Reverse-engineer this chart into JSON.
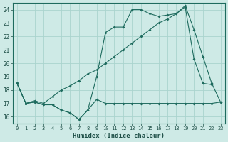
{
  "xlabel": "Humidex (Indice chaleur)",
  "bg_color": "#ceeae6",
  "line_color": "#1e6b5e",
  "grid_color": "#aad4ce",
  "xlim": [
    -0.5,
    23.5
  ],
  "ylim": [
    15.5,
    24.5
  ],
  "xticks": [
    0,
    1,
    2,
    3,
    4,
    5,
    6,
    7,
    8,
    9,
    10,
    11,
    12,
    13,
    14,
    15,
    16,
    17,
    18,
    19,
    20,
    21,
    22,
    23
  ],
  "yticks": [
    16,
    17,
    18,
    19,
    20,
    21,
    22,
    23,
    24
  ],
  "line1_x": [
    0,
    1,
    2,
    3,
    4,
    5,
    6,
    7,
    8,
    9,
    10,
    11,
    12,
    13,
    14,
    15,
    16,
    17,
    18,
    19,
    20,
    21,
    22,
    23
  ],
  "line1_y": [
    18.5,
    17.0,
    17.1,
    16.9,
    16.9,
    16.5,
    16.3,
    15.8,
    16.5,
    17.3,
    17.0,
    17.0,
    17.0,
    17.0,
    17.0,
    17.0,
    17.0,
    17.0,
    17.0,
    17.0,
    17.0,
    17.0,
    17.0,
    17.1
  ],
  "line2_x": [
    0,
    1,
    2,
    3,
    4,
    5,
    6,
    7,
    8,
    9,
    10,
    11,
    12,
    13,
    14,
    15,
    16,
    17,
    18,
    19,
    20,
    21,
    22
  ],
  "line2_y": [
    18.5,
    17.0,
    17.1,
    16.9,
    16.9,
    16.5,
    16.3,
    15.8,
    16.5,
    19.0,
    22.3,
    22.7,
    22.7,
    24.0,
    24.0,
    23.7,
    23.5,
    23.6,
    23.7,
    24.2,
    20.3,
    18.5,
    18.4
  ],
  "line3_x": [
    0,
    1,
    2,
    3,
    4,
    5,
    6,
    7,
    8,
    9,
    10,
    11,
    12,
    13,
    14,
    15,
    16,
    17,
    18,
    19,
    20,
    21,
    22,
    23
  ],
  "line3_y": [
    18.5,
    17.0,
    17.2,
    17.0,
    17.5,
    18.0,
    18.3,
    18.7,
    19.2,
    19.5,
    20.0,
    20.5,
    21.0,
    21.5,
    22.0,
    22.5,
    23.0,
    23.3,
    23.7,
    24.3,
    22.5,
    20.5,
    18.5,
    17.1
  ]
}
